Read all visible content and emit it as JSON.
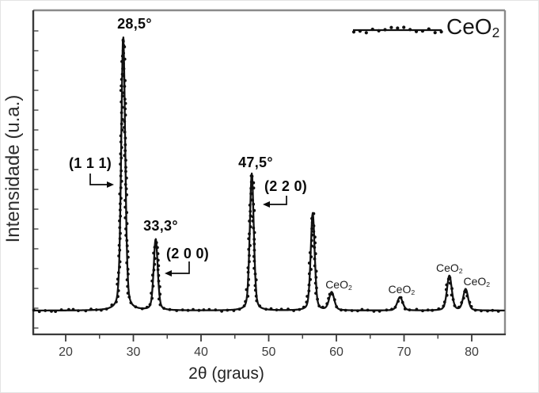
{
  "chart_data": {
    "type": "scatter",
    "description": "Difratograma de raios X do CeO2",
    "x_axis": {
      "label": "2θ (graus)",
      "min": 15,
      "max": 85,
      "major_ticks": [
        "20",
        "30",
        "40",
        "50",
        "60",
        "70",
        "80"
      ],
      "minor_tick_step": 5
    },
    "y_axis": {
      "label": "Intensidade (u.a.)",
      "units": "u.a.",
      "ticks": []
    },
    "legend": {
      "position": "top-right",
      "marker": "dotted-line",
      "entry": {
        "main": "CeO",
        "sub": "2"
      }
    },
    "series": [
      {
        "name": "CeO2",
        "peaks": [
          {
            "two_theta": 28.5,
            "relative_intensity": 1.0,
            "fwhm_deg": 0.7,
            "angle_label": "28,5°",
            "miller_label": "(1 1 1)"
          },
          {
            "two_theta": 33.3,
            "relative_intensity": 0.26,
            "fwhm_deg": 0.7,
            "angle_label": "33,3°",
            "miller_label": "(2 0 0)"
          },
          {
            "two_theta": 47.5,
            "relative_intensity": 0.5,
            "fwhm_deg": 0.7,
            "angle_label": "47,5°",
            "miller_label": "(2 2 0)"
          },
          {
            "two_theta": 56.5,
            "relative_intensity": 0.355,
            "fwhm_deg": 0.7
          },
          {
            "two_theta": 59.3,
            "relative_intensity": 0.066,
            "fwhm_deg": 0.9,
            "phase_label": {
              "main": "CeO",
              "sub": "2"
            }
          },
          {
            "two_theta": 69.4,
            "relative_intensity": 0.049,
            "fwhm_deg": 0.95,
            "phase_label": {
              "main": "CeO",
              "sub": "2"
            }
          },
          {
            "two_theta": 76.7,
            "relative_intensity": 0.127,
            "fwhm_deg": 0.85,
            "phase_label": {
              "main": "CeO",
              "sub": "2"
            }
          },
          {
            "two_theta": 79.1,
            "relative_intensity": 0.078,
            "fwhm_deg": 0.85,
            "phase_label": {
              "main": "CeO",
              "sub": "2"
            }
          }
        ]
      }
    ],
    "colors": {
      "data": "#121212",
      "frame_gray": "#8a8a8a",
      "axis_dark": "#3a3a3a",
      "tick_text": "#3c3c3c",
      "annotation_text": "#0a0a0a"
    }
  }
}
